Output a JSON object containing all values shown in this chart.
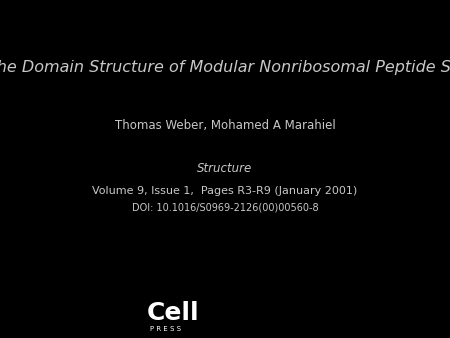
{
  "background_color": "#000000",
  "text_color": "#c8c8c8",
  "title": "Exploring the Domain Structure of Modular Nonribosomal Peptide Synthetases",
  "authors": "Thomas Weber, Mohamed A Marahiel",
  "journal": "Structure",
  "volume_info": "Volume 9, Issue 1,  Pages R3-R9 (January 2001)",
  "doi": "DOI: 10.1016/S0969-2126(00)00560-8",
  "cell_text": "Cell",
  "press_text": "P R E S S",
  "title_fontsize": 11.5,
  "authors_fontsize": 8.5,
  "journal_fontsize": 8.5,
  "volume_fontsize": 8.0,
  "doi_fontsize": 7.0,
  "cell_fontsize": 18,
  "press_fontsize": 5.0
}
